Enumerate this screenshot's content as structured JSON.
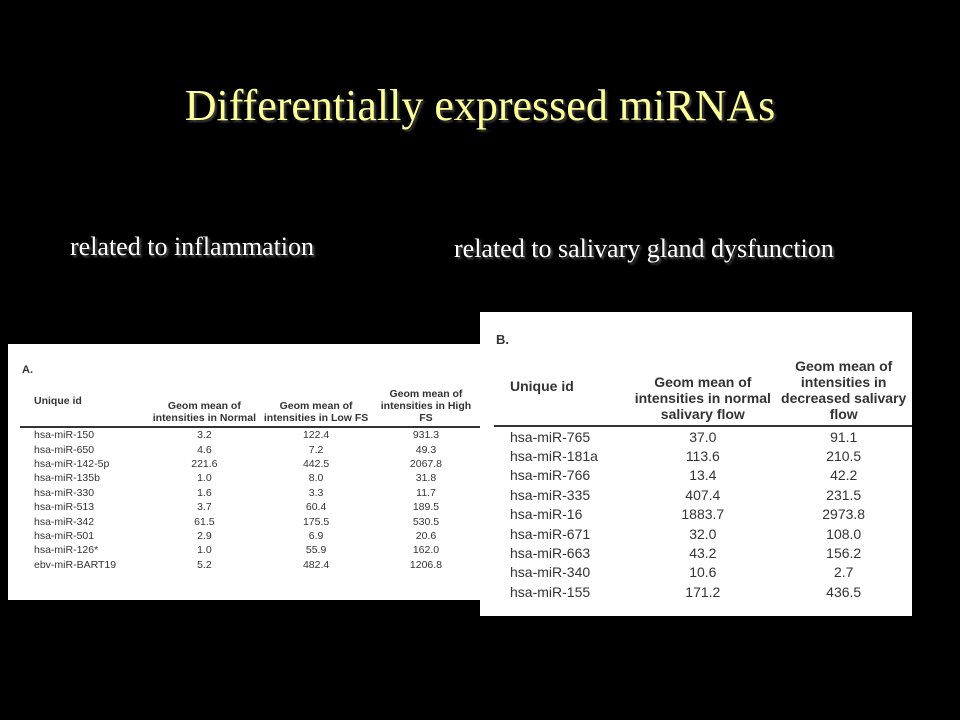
{
  "slide": {
    "title": "Differentially expressed miRNAs",
    "subtitle_left": "related to inflammation",
    "subtitle_right": "related to salivary gland dysfunction"
  },
  "table_a": {
    "label": "A.",
    "headers": [
      "Unique id",
      "Geom mean of intensities in Normal",
      "Geom mean of intensities in Low FS",
      "Geom mean of intensities in High FS"
    ],
    "rows": [
      [
        "hsa-miR-150",
        "3.2",
        "122.4",
        "931.3"
      ],
      [
        "hsa-miR-650",
        "4.6",
        "7.2",
        "49.3"
      ],
      [
        "hsa-miR-142-5p",
        "221.6",
        "442.5",
        "2067.8"
      ],
      [
        "hsa-miR-135b",
        "1.0",
        "8.0",
        "31.8"
      ],
      [
        "hsa-miR-330",
        "1.6",
        "3.3",
        "11.7"
      ],
      [
        "hsa-miR-513",
        "3.7",
        "60.4",
        "189.5"
      ],
      [
        "hsa-miR-342",
        "61.5",
        "175.5",
        "530.5"
      ],
      [
        "hsa-miR-501",
        "2.9",
        "6.9",
        "20.6"
      ],
      [
        "hsa-miR-126*",
        "1.0",
        "55.9",
        "162.0"
      ],
      [
        "ebv-miR-BART19",
        "5.2",
        "482.4",
        "1206.8"
      ]
    ]
  },
  "table_b": {
    "label": "B.",
    "headers": [
      "Unique id",
      "Geom mean of intensities in normal salivary flow",
      "Geom mean of intensities in decreased salivary flow"
    ],
    "rows": [
      [
        "hsa-miR-765",
        "37.0",
        "91.1"
      ],
      [
        "hsa-miR-181a",
        "113.6",
        "210.5"
      ],
      [
        "hsa-miR-766",
        "13.4",
        "42.2"
      ],
      [
        "hsa-miR-335",
        "407.4",
        "231.5"
      ],
      [
        "hsa-miR-16",
        "1883.7",
        "2973.8"
      ],
      [
        "hsa-miR-671",
        "32.0",
        "108.0"
      ],
      [
        "hsa-miR-663",
        "43.2",
        "156.2"
      ],
      [
        "hsa-miR-340",
        "10.6",
        "2.7"
      ],
      [
        "hsa-miR-155",
        "171.2",
        "436.5"
      ]
    ]
  }
}
